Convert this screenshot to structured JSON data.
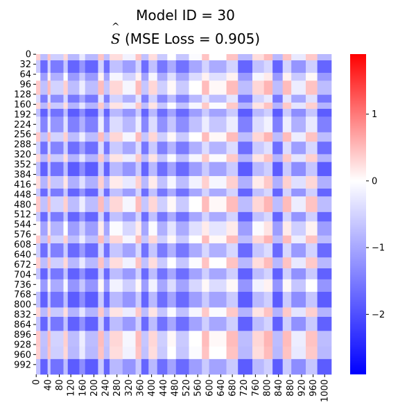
{
  "chart_data": {
    "type": "heatmap",
    "title_line1": "Model ID = 30",
    "title_line2_prefix": "S",
    "title_line2_suffix": " (MSE Loss = 0.905)",
    "xlabel": "",
    "ylabel": "",
    "matrix_size": 1024,
    "x_tick_labels": [
      "0",
      "40",
      "80",
      "120",
      "160",
      "200",
      "240",
      "280",
      "320",
      "360",
      "400",
      "440",
      "480",
      "520",
      "560",
      "600",
      "640",
      "680",
      "720",
      "760",
      "800",
      "840",
      "880",
      "920",
      "960",
      "1000"
    ],
    "y_tick_labels": [
      "0",
      "32",
      "64",
      "96",
      "128",
      "160",
      "192",
      "224",
      "256",
      "288",
      "320",
      "352",
      "384",
      "416",
      "448",
      "480",
      "512",
      "544",
      "576",
      "608",
      "640",
      "672",
      "704",
      "736",
      "768",
      "800",
      "832",
      "864",
      "896",
      "928",
      "960",
      "992"
    ],
    "colorbar": {
      "vmin": -2.9,
      "vmax": 1.9,
      "ticks": [
        "1",
        "0",
        "−1",
        "−2"
      ],
      "tick_values": [
        1,
        0,
        -1,
        -2
      ],
      "colors": [
        "#0000ff",
        "#ffffff",
        "#ff0000"
      ]
    },
    "row_profile": [
      {
        "start": 0,
        "end": 20,
        "value": 0.3
      },
      {
        "start": 20,
        "end": 60,
        "value": -1.6
      },
      {
        "start": 60,
        "end": 85,
        "value": -0.4
      },
      {
        "start": 85,
        "end": 130,
        "value": 0.4
      },
      {
        "start": 130,
        "end": 155,
        "value": -1.2
      },
      {
        "start": 155,
        "end": 175,
        "value": 0.2
      },
      {
        "start": 175,
        "end": 200,
        "value": -1.8
      },
      {
        "start": 200,
        "end": 250,
        "value": -1.0
      },
      {
        "start": 250,
        "end": 280,
        "value": 0.4
      },
      {
        "start": 280,
        "end": 320,
        "value": -1.4
      },
      {
        "start": 320,
        "end": 345,
        "value": 0.2
      },
      {
        "start": 345,
        "end": 390,
        "value": -1.8
      },
      {
        "start": 390,
        "end": 430,
        "value": 0.1
      },
      {
        "start": 430,
        "end": 455,
        "value": -1.6
      },
      {
        "start": 455,
        "end": 505,
        "value": 0.4
      },
      {
        "start": 505,
        "end": 535,
        "value": -1.6
      },
      {
        "start": 535,
        "end": 580,
        "value": -0.3
      },
      {
        "start": 580,
        "end": 605,
        "value": 0.4
      },
      {
        "start": 605,
        "end": 650,
        "value": -1.5
      },
      {
        "start": 650,
        "end": 685,
        "value": 0.3
      },
      {
        "start": 685,
        "end": 720,
        "value": -1.7
      },
      {
        "start": 720,
        "end": 760,
        "value": -0.5
      },
      {
        "start": 760,
        "end": 810,
        "value": -1.8
      },
      {
        "start": 810,
        "end": 840,
        "value": 0.2
      },
      {
        "start": 840,
        "end": 885,
        "value": -1.7
      },
      {
        "start": 885,
        "end": 935,
        "value": 0.4
      },
      {
        "start": 935,
        "end": 975,
        "value": 0.3
      },
      {
        "start": 975,
        "end": 1024,
        "value": -1.8
      }
    ],
    "col_profile": [
      {
        "start": 0,
        "end": 15,
        "value": 0.4
      },
      {
        "start": 15,
        "end": 40,
        "value": -1.8
      },
      {
        "start": 40,
        "end": 50,
        "value": 0.6
      },
      {
        "start": 50,
        "end": 95,
        "value": -1.4
      },
      {
        "start": 95,
        "end": 110,
        "value": 0.3
      },
      {
        "start": 110,
        "end": 150,
        "value": -1.9
      },
      {
        "start": 150,
        "end": 170,
        "value": -0.8
      },
      {
        "start": 170,
        "end": 215,
        "value": -1.9
      },
      {
        "start": 215,
        "end": 235,
        "value": 0.6
      },
      {
        "start": 235,
        "end": 255,
        "value": -1.7
      },
      {
        "start": 255,
        "end": 300,
        "value": 0.2
      },
      {
        "start": 300,
        "end": 345,
        "value": -0.6
      },
      {
        "start": 345,
        "end": 365,
        "value": 0.6
      },
      {
        "start": 365,
        "end": 390,
        "value": -1.7
      },
      {
        "start": 390,
        "end": 420,
        "value": 0.2
      },
      {
        "start": 420,
        "end": 455,
        "value": -1.5
      },
      {
        "start": 455,
        "end": 485,
        "value": -0.3
      },
      {
        "start": 485,
        "end": 530,
        "value": -1.6
      },
      {
        "start": 530,
        "end": 575,
        "value": -0.4
      },
      {
        "start": 575,
        "end": 600,
        "value": 0.6
      },
      {
        "start": 600,
        "end": 660,
        "value": -0.3
      },
      {
        "start": 660,
        "end": 700,
        "value": 0.6
      },
      {
        "start": 700,
        "end": 750,
        "value": -1.9
      },
      {
        "start": 750,
        "end": 790,
        "value": 0.2
      },
      {
        "start": 790,
        "end": 820,
        "value": 0.7
      },
      {
        "start": 820,
        "end": 855,
        "value": -1.9
      },
      {
        "start": 855,
        "end": 885,
        "value": 0.6
      },
      {
        "start": 885,
        "end": 935,
        "value": -0.8
      },
      {
        "start": 935,
        "end": 975,
        "value": 0.5
      },
      {
        "start": 975,
        "end": 1024,
        "value": -1.9
      }
    ]
  }
}
